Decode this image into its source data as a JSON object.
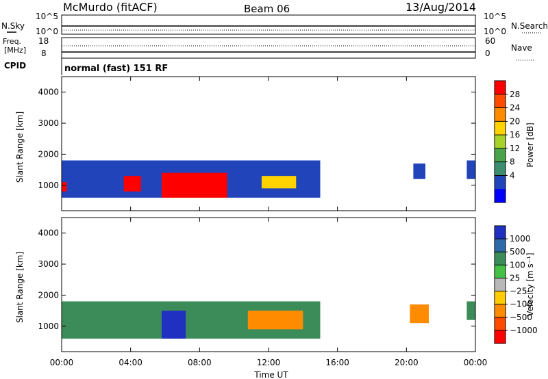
{
  "header": {
    "station": "McMurdo (fitACF)",
    "beam": "Beam 06",
    "date": "13/Aug/2014"
  },
  "labels": {
    "n_sky": "N.Sky",
    "n_search": "N.Search",
    "freq_line1": "Freq.",
    "freq_line2": "[MHz]",
    "cpid": "CPID",
    "nave": "Nave",
    "cpid_text": "normal (fast) 151 RF",
    "nsky_ticks": [
      "10^5",
      "10^0"
    ],
    "nsearch_ticks": [
      "10^5",
      "10^0"
    ],
    "freq_ticks": [
      "18",
      "8"
    ],
    "nave_ticks": [
      "60",
      "0"
    ]
  },
  "power_colorbar": {
    "label": "Power [dB]",
    "ticks": [
      "28",
      "24",
      "20",
      "16",
      "12",
      "8",
      "4"
    ],
    "colors": [
      "#ff0000",
      "#ff4a00",
      "#ff8c00",
      "#ffd200",
      "#a6d22a",
      "#4aa34a",
      "#3c8c70",
      "#2244bb",
      "#0000ff"
    ]
  },
  "velocity_colorbar": {
    "label": "Velocity [m s⁻¹]",
    "ticks": [
      "1000",
      "500",
      "100",
      "25",
      "−25",
      "−100",
      "−500",
      "−1000"
    ],
    "colors": [
      "#2030c0",
      "#2e6aa8",
      "#3c8c5a",
      "#44c044",
      "#b8b8b8",
      "#ffcc00",
      "#ff8c00",
      "#ff4a00",
      "#ff0000"
    ]
  },
  "chart_data": [
    {
      "type": "heatmap",
      "title": "Power",
      "xlabel": "Time UT",
      "ylabel": "Slant Range [km]",
      "x_ticks": [
        "00:00",
        "04:00",
        "08:00",
        "12:00",
        "16:00",
        "20:00",
        "00:00"
      ],
      "y_ticks": [
        "1000",
        "2000",
        "3000",
        "4000"
      ],
      "xlim_hours": [
        0,
        24
      ],
      "ylim_km": [
        180,
        4500
      ],
      "regions": [
        {
          "t0": 0.0,
          "t1": 15.0,
          "r0": 600,
          "r1": 1800,
          "level": "low"
        },
        {
          "t0": 0.0,
          "t1": 0.3,
          "r0": 800,
          "r1": 1100,
          "level": "high"
        },
        {
          "t0": 3.6,
          "t1": 4.6,
          "r0": 800,
          "r1": 1300,
          "level": "high"
        },
        {
          "t0": 5.8,
          "t1": 9.6,
          "r0": 600,
          "r1": 1400,
          "level": "high"
        },
        {
          "t0": 11.6,
          "t1": 13.6,
          "r0": 900,
          "r1": 1300,
          "level": "mid"
        },
        {
          "t0": 20.4,
          "t1": 21.1,
          "r0": 1200,
          "r1": 1700,
          "level": "low"
        },
        {
          "t0": 23.5,
          "t1": 24.0,
          "r0": 1200,
          "r1": 1800,
          "level": "low"
        }
      ]
    },
    {
      "type": "heatmap",
      "title": "Velocity",
      "xlabel": "Time UT",
      "ylabel": "Slant Range [km]",
      "x_ticks": [
        "00:00",
        "04:00",
        "08:00",
        "12:00",
        "16:00",
        "20:00",
        "00:00"
      ],
      "y_ticks": [
        "1000",
        "2000",
        "3000",
        "4000"
      ],
      "xlim_hours": [
        0,
        24
      ],
      "ylim_km": [
        180,
        4500
      ],
      "regions": [
        {
          "t0": 0.0,
          "t1": 15.0,
          "r0": 600,
          "r1": 1800,
          "velocity": 100
        },
        {
          "t0": 5.8,
          "t1": 7.2,
          "r0": 600,
          "r1": 1500,
          "velocity": 1000
        },
        {
          "t0": 10.8,
          "t1": 14.0,
          "r0": 900,
          "r1": 1500,
          "velocity": -100
        },
        {
          "t0": 20.2,
          "t1": 21.3,
          "r0": 1100,
          "r1": 1700,
          "velocity": -100
        },
        {
          "t0": 23.5,
          "t1": 24.0,
          "r0": 1200,
          "r1": 1800,
          "velocity": 100
        }
      ]
    }
  ],
  "xaxis_title": "Time UT",
  "ylabel": "Slant Range [km]"
}
